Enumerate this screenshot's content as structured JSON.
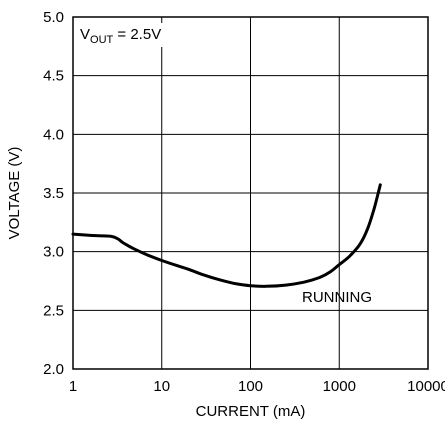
{
  "chart_data": {
    "type": "line",
    "title": "",
    "xlabel": "CURRENT (mA)",
    "ylabel": "VOLTAGE (V)",
    "xscale": "log",
    "xlim": [
      1,
      10000
    ],
    "ylim": [
      2.0,
      5.0
    ],
    "grid": true,
    "x_ticks": [
      "1",
      "10",
      "100",
      "1000",
      "10000"
    ],
    "y_ticks": [
      "2.0",
      "2.5",
      "3.0",
      "3.5",
      "4.0",
      "4.5",
      "5.0"
    ],
    "annotation_vout": {
      "prefix": "V",
      "sub": "OUT",
      "rest": " = 2.5V"
    },
    "series": [
      {
        "label": "RUNNING",
        "points": [
          [
            1,
            3.15
          ],
          [
            1.5,
            3.14
          ],
          [
            2,
            3.135
          ],
          [
            2.7,
            3.13
          ],
          [
            3.2,
            3.11
          ],
          [
            3.6,
            3.08
          ],
          [
            4.2,
            3.05
          ],
          [
            5,
            3.02
          ],
          [
            7,
            2.97
          ],
          [
            10,
            2.925
          ],
          [
            15,
            2.88
          ],
          [
            20,
            2.85
          ],
          [
            30,
            2.8
          ],
          [
            45,
            2.76
          ],
          [
            70,
            2.725
          ],
          [
            100,
            2.71
          ],
          [
            150,
            2.705
          ],
          [
            250,
            2.715
          ],
          [
            400,
            2.74
          ],
          [
            600,
            2.78
          ],
          [
            800,
            2.83
          ],
          [
            1000,
            2.89
          ],
          [
            1300,
            2.96
          ],
          [
            1700,
            3.06
          ],
          [
            2100,
            3.2
          ],
          [
            2500,
            3.38
          ],
          [
            2900,
            3.57
          ]
        ]
      }
    ]
  }
}
